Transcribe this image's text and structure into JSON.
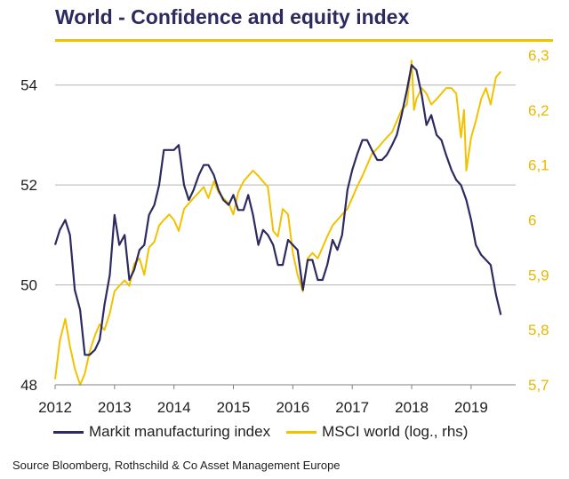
{
  "title": "World - Confidence and equity index",
  "source": "Source Bloomberg,  Rothschild & Co Asset Management  Europe",
  "colors": {
    "series1": "#2c2a5e",
    "series2": "#f2c200",
    "grid": "#b3b3b3",
    "right_ticks": "#e8b800",
    "title": "#2c2a5e"
  },
  "legend": [
    {
      "name": "Markit manufacturing index",
      "color": "#2c2a5e"
    },
    {
      "name": "MSCI world (log., rhs)",
      "color": "#f2c200"
    }
  ],
  "chart_data": {
    "type": "line",
    "grid": "horizontal",
    "legend_position": "bottom",
    "x_ticks": [
      "2012",
      "2013",
      "2014",
      "2015",
      "2016",
      "2017",
      "2018",
      "2019"
    ],
    "xlim": [
      2012.0,
      2019.75
    ],
    "y_left": {
      "ticks": [
        "48",
        "50",
        "52",
        "54"
      ],
      "lim": [
        48,
        54.6
      ]
    },
    "y_right": {
      "ticks": [
        "5,7",
        "5,8",
        "5,9",
        "6",
        "6,1",
        "6,2",
        "6,3"
      ],
      "lim": [
        5.7,
        6.3
      ]
    },
    "series": [
      {
        "name": "Markit manufacturing index",
        "axis": "left",
        "x": [
          2012.0,
          2012.08,
          2012.17,
          2012.25,
          2012.33,
          2012.42,
          2012.5,
          2012.58,
          2012.67,
          2012.75,
          2012.83,
          2012.92,
          2013.0,
          2013.08,
          2013.17,
          2013.25,
          2013.33,
          2013.42,
          2013.5,
          2013.58,
          2013.67,
          2013.75,
          2013.83,
          2013.92,
          2014.0,
          2014.08,
          2014.17,
          2014.25,
          2014.33,
          2014.42,
          2014.5,
          2014.58,
          2014.67,
          2014.75,
          2014.83,
          2014.92,
          2015.0,
          2015.08,
          2015.17,
          2015.25,
          2015.33,
          2015.42,
          2015.5,
          2015.58,
          2015.67,
          2015.75,
          2015.83,
          2015.92,
          2016.0,
          2016.08,
          2016.17,
          2016.25,
          2016.33,
          2016.42,
          2016.5,
          2016.58,
          2016.67,
          2016.75,
          2016.83,
          2016.92,
          2017.0,
          2017.08,
          2017.17,
          2017.25,
          2017.33,
          2017.42,
          2017.5,
          2017.58,
          2017.67,
          2017.75,
          2017.83,
          2017.92,
          2018.0,
          2018.08,
          2018.17,
          2018.25,
          2018.33,
          2018.42,
          2018.5,
          2018.58,
          2018.67,
          2018.75,
          2018.83,
          2018.92,
          2019.0,
          2019.08,
          2019.17,
          2019.25,
          2019.33,
          2019.42,
          2019.5
        ],
        "values": [
          50.8,
          51.1,
          51.3,
          51.0,
          49.9,
          49.5,
          48.6,
          48.6,
          48.7,
          48.9,
          49.6,
          50.2,
          51.4,
          50.8,
          51.0,
          50.1,
          50.3,
          50.7,
          50.8,
          51.4,
          51.6,
          52.0,
          52.7,
          52.7,
          52.7,
          52.8,
          52.0,
          51.7,
          51.9,
          52.2,
          52.4,
          52.4,
          52.2,
          51.9,
          51.7,
          51.6,
          51.8,
          51.5,
          51.5,
          51.8,
          51.4,
          50.8,
          51.1,
          51.0,
          50.8,
          50.4,
          50.4,
          50.9,
          50.8,
          50.7,
          49.9,
          50.5,
          50.5,
          50.1,
          50.1,
          50.4,
          50.9,
          50.7,
          51.0,
          51.9,
          52.3,
          52.6,
          52.9,
          52.9,
          52.7,
          52.5,
          52.5,
          52.6,
          52.8,
          53.0,
          53.4,
          53.9,
          54.4,
          54.3,
          53.8,
          53.2,
          53.4,
          53.0,
          52.9,
          52.6,
          52.3,
          52.1,
          52.0,
          51.7,
          51.3,
          50.8,
          50.6,
          50.5,
          50.4,
          49.8,
          49.4
        ]
      },
      {
        "name": "MSCI world (log., rhs)",
        "axis": "right",
        "x": [
          2012.0,
          2012.08,
          2012.17,
          2012.25,
          2012.33,
          2012.42,
          2012.5,
          2012.58,
          2012.67,
          2012.75,
          2012.83,
          2012.92,
          2013.0,
          2013.08,
          2013.17,
          2013.25,
          2013.33,
          2013.42,
          2013.5,
          2013.58,
          2013.67,
          2013.75,
          2013.83,
          2013.92,
          2014.0,
          2014.08,
          2014.17,
          2014.25,
          2014.33,
          2014.42,
          2014.5,
          2014.58,
          2014.67,
          2014.75,
          2014.83,
          2014.92,
          2015.0,
          2015.08,
          2015.17,
          2015.25,
          2015.33,
          2015.42,
          2015.5,
          2015.58,
          2015.67,
          2015.75,
          2015.83,
          2015.92,
          2016.0,
          2016.08,
          2016.17,
          2016.25,
          2016.33,
          2016.42,
          2016.5,
          2016.58,
          2016.67,
          2016.75,
          2016.83,
          2016.92,
          2017.0,
          2017.08,
          2017.17,
          2017.25,
          2017.33,
          2017.42,
          2017.5,
          2017.58,
          2017.67,
          2017.75,
          2017.83,
          2017.92,
          2018.0,
          2018.04,
          2018.08,
          2018.17,
          2018.25,
          2018.33,
          2018.42,
          2018.5,
          2018.58,
          2018.67,
          2018.75,
          2018.83,
          2018.88,
          2018.92,
          2018.96,
          2019.0,
          2019.08,
          2019.17,
          2019.25,
          2019.33,
          2019.42,
          2019.5
        ],
        "values": [
          5.71,
          5.78,
          5.82,
          5.77,
          5.73,
          5.7,
          5.72,
          5.76,
          5.79,
          5.81,
          5.8,
          5.83,
          5.87,
          5.88,
          5.89,
          5.88,
          5.92,
          5.93,
          5.9,
          5.95,
          5.96,
          5.99,
          6.0,
          6.01,
          6.0,
          5.98,
          6.02,
          6.03,
          6.04,
          6.05,
          6.06,
          6.04,
          6.07,
          6.05,
          6.04,
          6.03,
          6.01,
          6.05,
          6.07,
          6.08,
          6.09,
          6.08,
          6.07,
          6.06,
          5.98,
          5.97,
          6.02,
          6.01,
          5.94,
          5.9,
          5.87,
          5.93,
          5.94,
          5.93,
          5.95,
          5.97,
          5.99,
          6.0,
          6.01,
          6.02,
          6.04,
          6.06,
          6.08,
          6.1,
          6.12,
          6.13,
          6.14,
          6.15,
          6.16,
          6.18,
          6.2,
          6.21,
          6.29,
          6.2,
          6.22,
          6.24,
          6.23,
          6.21,
          6.22,
          6.23,
          6.24,
          6.24,
          6.23,
          6.15,
          6.2,
          6.09,
          6.12,
          6.15,
          6.18,
          6.22,
          6.24,
          6.21,
          6.26,
          6.27
        ]
      }
    ]
  }
}
